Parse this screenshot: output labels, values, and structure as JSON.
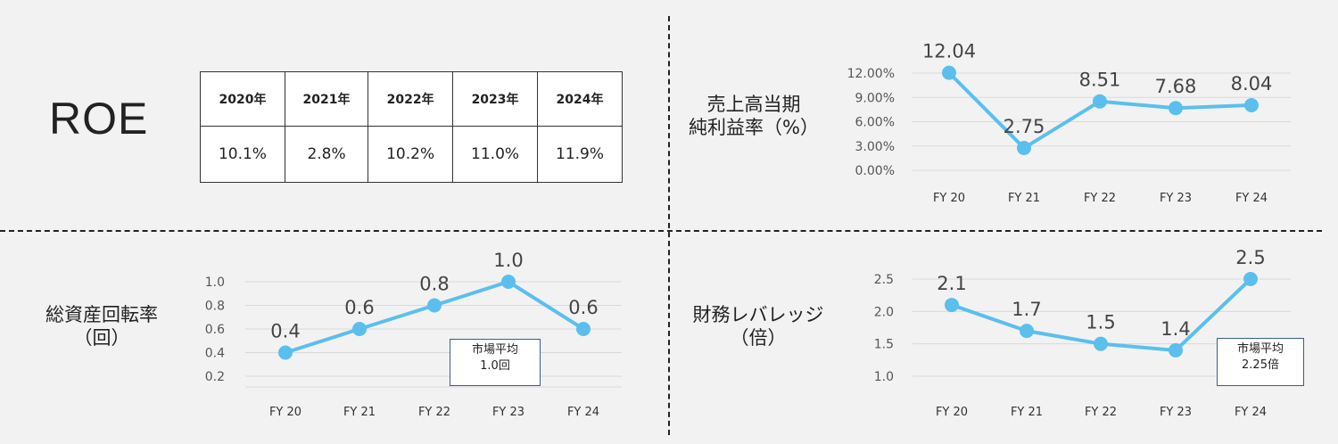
{
  "roe": {
    "title": "ROE",
    "years": [
      "2020年",
      "2021年",
      "2022年",
      "2023年",
      "2024年"
    ],
    "values": [
      "10.1%",
      "2.8%",
      "10.2%",
      "11.0%",
      "11.9%"
    ]
  },
  "panels": {
    "net_margin_label": "売上高当期\n純利益率（%）",
    "turnover_label": "総資産回転率\n（回）",
    "leverage_label": "財務レバレッジ\n（倍）",
    "turnover_note": "市場平均\n1.0回",
    "leverage_note": "市場平均\n2.25倍"
  },
  "chart_data": [
    {
      "type": "line",
      "title": "売上高当期純利益率（%）",
      "categories": [
        "FY 20",
        "FY 21",
        "FY 22",
        "FY 23",
        "FY 24"
      ],
      "values": [
        12.04,
        2.75,
        8.51,
        7.68,
        8.04
      ],
      "data_labels": [
        "12.04",
        "2.75",
        "8.51",
        "7.68",
        "8.04"
      ],
      "yticks": [
        "0.00%",
        "3.00%",
        "6.00%",
        "9.00%",
        "12.00%"
      ],
      "ylim": [
        0,
        12
      ],
      "grid": true,
      "color": "#5bbfee"
    },
    {
      "type": "line",
      "title": "総資産回転率（回）",
      "categories": [
        "FY 20",
        "FY 21",
        "FY 22",
        "FY 23",
        "FY 24"
      ],
      "values": [
        0.4,
        0.6,
        0.8,
        1.0,
        0.6
      ],
      "data_labels": [
        "0.4",
        "0.6",
        "0.8",
        "1.0",
        "0.6"
      ],
      "yticks": [
        "0.2",
        "0.4",
        "0.6",
        "0.8",
        "1.0"
      ],
      "ylim": [
        0.2,
        1.0
      ],
      "grid": true,
      "color": "#5bbfee"
    },
    {
      "type": "line",
      "title": "財務レバレッジ（倍）",
      "categories": [
        "FY 20",
        "FY 21",
        "FY 22",
        "FY 23",
        "FY 24"
      ],
      "values": [
        2.1,
        1.7,
        1.5,
        1.4,
        2.5
      ],
      "data_labels": [
        "2.1",
        "1.7",
        "1.5",
        "1.4",
        "2.5"
      ],
      "yticks": [
        "1.0",
        "1.5",
        "2.0",
        "2.5"
      ],
      "ylim": [
        1.0,
        2.5
      ],
      "grid": true,
      "color": "#5bbfee"
    }
  ]
}
